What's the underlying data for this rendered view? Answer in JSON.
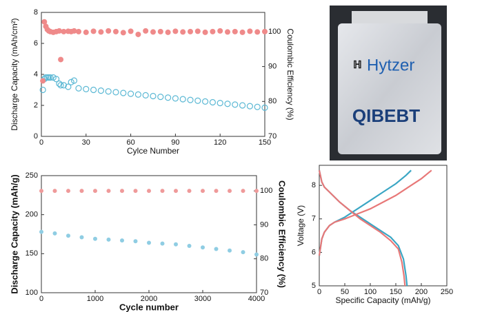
{
  "chart_data": [
    {
      "type": "scatter",
      "x_label": "Cylce Number",
      "y_label": "Discharge Capacity (mAh/cm²)",
      "y2_label": "Coulombic Efficiency (%)",
      "x": [
        1,
        2,
        3,
        4,
        5,
        6,
        8,
        10,
        12,
        13,
        15,
        18,
        20,
        22,
        25,
        30,
        35,
        40,
        45,
        50,
        55,
        60,
        65,
        70,
        75,
        80,
        85,
        90,
        95,
        100,
        105,
        110,
        115,
        120,
        125,
        130,
        135,
        140,
        145,
        150
      ],
      "series": [
        {
          "color": "#5bb8d4",
          "marker": "open",
          "values": [
            3.0,
            3.7,
            3.8,
            3.8,
            3.8,
            3.8,
            3.8,
            3.7,
            3.4,
            3.3,
            3.3,
            3.2,
            3.5,
            3.6,
            3.1,
            3.05,
            3.0,
            2.95,
            2.9,
            2.85,
            2.8,
            2.75,
            2.7,
            2.65,
            2.6,
            2.55,
            2.5,
            2.45,
            2.4,
            2.35,
            2.3,
            2.25,
            2.2,
            2.15,
            2.1,
            2.05,
            2.0,
            1.95,
            1.9,
            1.85
          ]
        },
        {
          "color": "#ef8a8a",
          "marker": "filled",
          "axis": "y2",
          "values": [
            85.9,
            102.8,
            101.5,
            100.6,
            100.2,
            100,
            99.8,
            100,
            100.2,
            92,
            100,
            100.1,
            100,
            100.2,
            100,
            99.8,
            100.1,
            99.9,
            100.2,
            100,
            99.7,
            100.1,
            99.2,
            100.2,
            99.9,
            100,
            99.8,
            100.1,
            99.9,
            100,
            100.1,
            99.8,
            100,
            100.2,
            99.9,
            100,
            99.8,
            100.1,
            99.9,
            100
          ]
        }
      ],
      "xlim": [
        0,
        150
      ],
      "xticks": [
        0,
        30,
        60,
        90,
        120,
        150
      ],
      "ylim": [
        0,
        8
      ],
      "yticks": [
        0,
        2,
        4,
        6,
        8
      ],
      "y2lim": [
        70,
        105.5
      ],
      "y2ticks": [
        70,
        80,
        90,
        100
      ]
    },
    {
      "type": "scatter",
      "x_label": "Cycle number",
      "y_label": "Discharge Capacity (mAh/g)",
      "y2_label": "Coulombic Efficiency (%)",
      "x": [
        0,
        250,
        500,
        750,
        1000,
        1250,
        1500,
        1750,
        2000,
        2250,
        2500,
        2750,
        3000,
        3250,
        3500,
        3750,
        4000
      ],
      "series": [
        {
          "color": "#8fcde3",
          "marker": "filled",
          "values": [
            178,
            176,
            173,
            171,
            169,
            168,
            167,
            166,
            164,
            163,
            162,
            160,
            158,
            156,
            154,
            152,
            149
          ]
        },
        {
          "color": "#ef9a9a",
          "marker": "filled",
          "axis": "y2",
          "values": [
            100,
            100,
            100,
            100,
            100,
            100,
            100,
            100,
            100,
            100,
            100,
            100,
            100,
            100,
            100,
            100,
            100
          ]
        }
      ],
      "xlim": [
        0,
        4000
      ],
      "xticks": [
        0,
        1000,
        2000,
        3000,
        4000
      ],
      "ylim": [
        100,
        250
      ],
      "yticks": [
        100,
        150,
        200,
        250
      ],
      "y2lim": [
        70,
        104.5
      ],
      "y2ticks": [
        70,
        80,
        90,
        100
      ]
    },
    {
      "type": "line",
      "x_label": "Specific Capacity (mAh/g)",
      "y_label": "Voltage (V)",
      "series": [
        {
          "color": "#3aa6c4",
          "x": [
            0,
            5,
            10,
            20,
            30,
            50,
            75,
            100,
            125,
            150,
            170,
            180
          ],
          "values": [
            5.9,
            6.4,
            6.6,
            6.8,
            6.9,
            7.05,
            7.3,
            7.55,
            7.8,
            8.05,
            8.3,
            8.45
          ]
        },
        {
          "color": "#3aa6c4",
          "x": [
            0,
            5,
            10,
            20,
            40,
            60,
            80,
            100,
            120,
            140,
            155,
            165,
            170,
            172
          ],
          "values": [
            8.45,
            8.1,
            7.95,
            7.8,
            7.5,
            7.25,
            7.05,
            6.85,
            6.65,
            6.45,
            6.2,
            5.8,
            5.3,
            5.0
          ]
        },
        {
          "color": "#e87878",
          "x": [
            0,
            5,
            10,
            20,
            30,
            50,
            75,
            100,
            125,
            150,
            175,
            200,
            220
          ],
          "values": [
            5.9,
            6.4,
            6.6,
            6.8,
            6.9,
            7.0,
            7.15,
            7.3,
            7.5,
            7.7,
            7.95,
            8.2,
            8.45
          ]
        },
        {
          "color": "#e87878",
          "x": [
            0,
            5,
            10,
            20,
            40,
            60,
            80,
            100,
            120,
            140,
            155,
            162,
            166,
            168
          ],
          "values": [
            8.45,
            8.1,
            7.95,
            7.8,
            7.5,
            7.25,
            7.0,
            6.8,
            6.6,
            6.35,
            6.1,
            5.7,
            5.3,
            5.0
          ]
        }
      ],
      "xlim": [
        0,
        250
      ],
      "xticks": [
        0,
        50,
        100,
        150,
        200,
        250
      ],
      "ylim": [
        5,
        8.6
      ],
      "yticks": [
        5,
        6,
        7,
        8
      ]
    }
  ],
  "photo": {
    "brand": "Hytzer",
    "logo": "QIBEBT"
  }
}
